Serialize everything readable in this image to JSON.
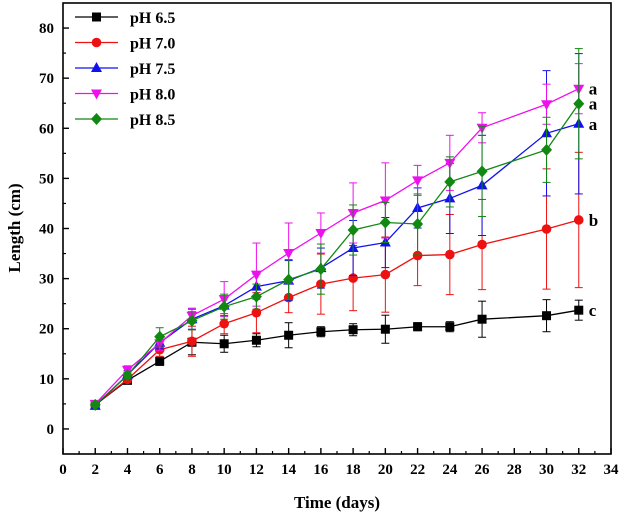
{
  "chart_data": {
    "type": "line",
    "title": "",
    "xlabel": "Time (days)",
    "ylabel": "Length (cm)",
    "xlim": [
      0,
      34
    ],
    "ylim": [
      -5,
      85
    ],
    "xticks": [
      0,
      2,
      4,
      6,
      8,
      10,
      12,
      14,
      16,
      18,
      20,
      22,
      24,
      26,
      28,
      30,
      32,
      34
    ],
    "yticks": [
      0,
      10,
      20,
      30,
      40,
      50,
      60,
      70,
      80
    ],
    "grid": false,
    "legend_position": "top-left",
    "series": [
      {
        "name": "pH 6.5",
        "color": "#000000",
        "marker": "square",
        "x": [
          2,
          4,
          6,
          8,
          10,
          12,
          14,
          16,
          18,
          20,
          22,
          24,
          26,
          30,
          32
        ],
        "y": [
          4.8,
          9.7,
          13.5,
          17.3,
          17.0,
          17.7,
          18.7,
          19.4,
          19.8,
          19.9,
          20.4,
          20.4,
          21.9,
          22.6,
          23.7
        ],
        "err": [
          0.4,
          0.6,
          0.8,
          2.5,
          1.7,
          1.3,
          2.5,
          1.0,
          1.2,
          2.8,
          0.8,
          1.0,
          3.6,
          3.2,
          2.0
        ],
        "label": "c"
      },
      {
        "name": "pH 7.0",
        "color": "#ee1111",
        "marker": "circle",
        "x": [
          2,
          4,
          6,
          8,
          10,
          12,
          14,
          16,
          18,
          20,
          22,
          24,
          26,
          30,
          32
        ],
        "y": [
          4.8,
          9.9,
          15.8,
          17.5,
          21.0,
          23.2,
          26.2,
          28.9,
          30.1,
          30.8,
          34.6,
          34.8,
          36.8,
          39.9,
          41.7
        ],
        "err": [
          0.4,
          0.6,
          1.3,
          3.0,
          2.0,
          4.0,
          3.0,
          6.0,
          6.5,
          7.5,
          6.0,
          8.0,
          9.0,
          12.0,
          13.5
        ],
        "label": "b"
      },
      {
        "name": "pH 7.5",
        "color": "#1111ee",
        "marker": "triangle-up",
        "x": [
          2,
          4,
          6,
          8,
          10,
          12,
          14,
          16,
          18,
          20,
          22,
          24,
          26,
          30,
          32
        ],
        "y": [
          4.6,
          10.8,
          17.2,
          21.9,
          24.6,
          28.4,
          29.6,
          32.1,
          36.1,
          37.2,
          44.1,
          46.0,
          48.6,
          59.0,
          60.9
        ],
        "err": [
          0.4,
          0.8,
          1.2,
          2.0,
          2.0,
          2.5,
          4.0,
          4.0,
          5.5,
          5.0,
          4.0,
          7.0,
          10.0,
          12.5,
          14.0
        ],
        "label": "a"
      },
      {
        "name": "pH 8.0",
        "color": "#ee11ee",
        "marker": "triangle-down",
        "x": [
          2,
          4,
          6,
          8,
          10,
          12,
          14,
          16,
          18,
          20,
          22,
          24,
          26,
          30,
          32
        ],
        "y": [
          5.0,
          11.8,
          17.1,
          22.6,
          25.9,
          30.8,
          35.1,
          39.1,
          43.1,
          45.6,
          49.6,
          53.1,
          60.1,
          64.8,
          67.9
        ],
        "err": [
          0.4,
          0.8,
          1.5,
          1.5,
          3.5,
          6.3,
          6.0,
          4.0,
          6.0,
          7.5,
          3.0,
          5.5,
          3.0,
          4.0,
          5.0
        ],
        "label": "a"
      },
      {
        "name": "pH 8.5",
        "color": "#118811",
        "marker": "diamond",
        "x": [
          2,
          4,
          6,
          8,
          10,
          12,
          14,
          16,
          18,
          20,
          22,
          24,
          26,
          30,
          32
        ],
        "y": [
          4.8,
          10.7,
          18.4,
          21.6,
          24.4,
          26.4,
          29.8,
          31.9,
          39.7,
          41.2,
          40.9,
          49.3,
          51.4,
          55.7,
          64.9
        ],
        "err": [
          0.4,
          0.6,
          1.8,
          1.8,
          2.5,
          2.5,
          4.0,
          5.0,
          5.0,
          4.0,
          6.0,
          5.0,
          9.0,
          6.5,
          11.0
        ],
        "label": "a"
      }
    ]
  }
}
